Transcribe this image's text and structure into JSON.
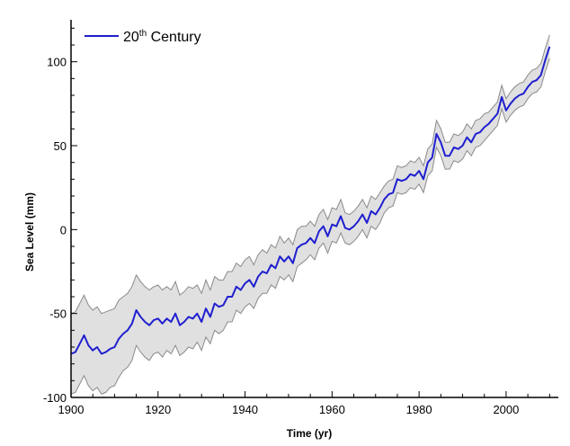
{
  "chart_data": {
    "type": "line",
    "title": "",
    "xlabel": "Time (yr)",
    "ylabel": "Sea Level (mm)",
    "xlim": [
      1900,
      2012
    ],
    "ylim": [
      -100,
      125
    ],
    "x_ticks": [
      "1900",
      "1920",
      "1940",
      "1960",
      "1980",
      "2000"
    ],
    "y_ticks": [
      "-100",
      "-50",
      "0",
      "50",
      "100"
    ],
    "grid": false,
    "legend_position": "top-left",
    "colors": {
      "line": "#1f1fd0",
      "band_fill": "#e0e0e0",
      "band_edge": "#8a8a8a"
    },
    "series": [
      {
        "name": "20th Century",
        "x": [
          1900,
          1901,
          1902,
          1903,
          1904,
          1905,
          1906,
          1907,
          1908,
          1909,
          1910,
          1911,
          1912,
          1913,
          1914,
          1915,
          1916,
          1917,
          1918,
          1919,
          1920,
          1921,
          1922,
          1923,
          1924,
          1925,
          1926,
          1927,
          1928,
          1929,
          1930,
          1931,
          1932,
          1933,
          1934,
          1935,
          1936,
          1937,
          1938,
          1939,
          1940,
          1941,
          1942,
          1943,
          1944,
          1945,
          1946,
          1947,
          1948,
          1949,
          1950,
          1951,
          1952,
          1953,
          1954,
          1955,
          1956,
          1957,
          1958,
          1959,
          1960,
          1961,
          1962,
          1963,
          1964,
          1965,
          1966,
          1967,
          1968,
          1969,
          1970,
          1971,
          1972,
          1973,
          1974,
          1975,
          1976,
          1977,
          1978,
          1979,
          1980,
          1981,
          1982,
          1983,
          1984,
          1985,
          1986,
          1987,
          1988,
          1989,
          1990,
          1991,
          1992,
          1993,
          1994,
          1995,
          1996,
          1997,
          1998,
          1999,
          2000,
          2001,
          2002,
          2003,
          2004,
          2005,
          2006,
          2007,
          2008,
          2009,
          2010
        ],
        "values": [
          -74,
          -73,
          -68,
          -63,
          -69,
          -72,
          -70,
          -74,
          -73,
          -71,
          -70,
          -65,
          -62,
          -60,
          -56,
          -48,
          -52,
          -55,
          -57,
          -54,
          -53,
          -56,
          -53,
          -55,
          -50,
          -57,
          -55,
          -52,
          -53,
          -50,
          -55,
          -47,
          -52,
          -44,
          -46,
          -45,
          -40,
          -40,
          -34,
          -36,
          -32,
          -30,
          -34,
          -28,
          -25,
          -26,
          -21,
          -23,
          -16,
          -19,
          -16,
          -20,
          -11,
          -9,
          -8,
          -5,
          -8,
          -1,
          2,
          -4,
          3,
          2,
          8,
          1,
          0,
          2,
          5,
          9,
          4,
          11,
          9,
          13,
          18,
          21,
          22,
          30,
          29,
          30,
          33,
          32,
          35,
          30,
          40,
          43,
          57,
          52,
          44,
          44,
          49,
          48,
          50,
          55,
          52,
          57,
          58,
          61,
          63,
          66,
          69,
          79,
          71,
          75,
          78,
          80,
          81,
          85,
          88,
          89,
          92,
          101,
          109
        ],
        "uncertainty": [
          24,
          24,
          24,
          24,
          24,
          24,
          24,
          24,
          24,
          23,
          23,
          23,
          22,
          22,
          22,
          21,
          21,
          21,
          21,
          20,
          20,
          20,
          19,
          19,
          19,
          18,
          18,
          18,
          18,
          17,
          17,
          17,
          16,
          16,
          16,
          15,
          15,
          15,
          14,
          14,
          14,
          14,
          13,
          13,
          13,
          12,
          12,
          12,
          12,
          11,
          11,
          11,
          11,
          11,
          10,
          10,
          10,
          10,
          10,
          10,
          10,
          10,
          10,
          9,
          9,
          9,
          9,
          9,
          9,
          9,
          9,
          9,
          8,
          8,
          8,
          8,
          8,
          8,
          8,
          8,
          8,
          8,
          8,
          8,
          8,
          8,
          8,
          8,
          8,
          8,
          8,
          8,
          8,
          8,
          8,
          8,
          7,
          7,
          7,
          7,
          7,
          7,
          7,
          7,
          7,
          7,
          7,
          7,
          7,
          7,
          7
        ]
      }
    ]
  }
}
